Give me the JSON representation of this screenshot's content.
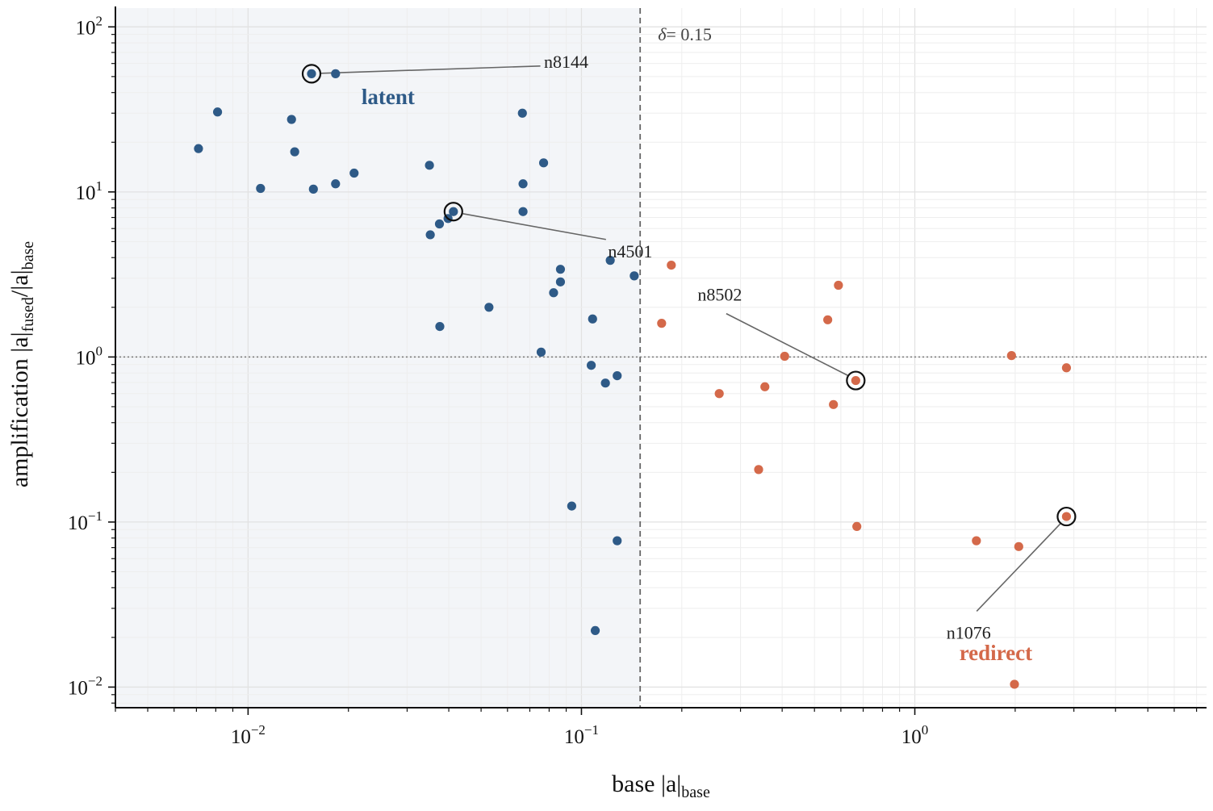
{
  "chart_data": {
    "type": "scatter",
    "x_scale": "log",
    "y_scale": "log",
    "xlim": [
      0.004,
      7.5
    ],
    "ylim": [
      0.0075,
      130
    ],
    "xlabel": {
      "main": "base |a|",
      "sub": "base"
    },
    "ylabel": {
      "main": "amplification |a|",
      "sub1": "fused",
      "mid": "/|a|",
      "sub2": "base"
    },
    "x_ticks": [
      {
        "value": 0.01,
        "base": "10",
        "exp": "−2"
      },
      {
        "value": 0.1,
        "base": "10",
        "exp": "−1"
      },
      {
        "value": 1,
        "base": "10",
        "exp": "0"
      }
    ],
    "y_ticks": [
      {
        "value": 0.01,
        "base": "10",
        "exp": "−2"
      },
      {
        "value": 0.1,
        "base": "10",
        "exp": "−1"
      },
      {
        "value": 1,
        "base": "10",
        "exp": "0"
      },
      {
        "value": 10,
        "base": "10",
        "exp": "1"
      },
      {
        "value": 100,
        "base": "10",
        "exp": "2"
      }
    ],
    "threshold": {
      "delta": 0.15,
      "label_symbol": "δ",
      "label_value": "= 0.15"
    },
    "reference_y": 1,
    "colors": {
      "latent": "#2e5a87",
      "redirect": "#d4694a",
      "latent_region": "#f3f5f8",
      "grid": "#e4e4e4"
    },
    "series": [
      {
        "name": "latent",
        "label": "latent",
        "points": [
          {
            "x": 0.0155,
            "y": 52
          },
          {
            "x": 0.0183,
            "y": 52
          },
          {
            "x": 0.0081,
            "y": 30.5
          },
          {
            "x": 0.0135,
            "y": 27.5
          },
          {
            "x": 0.0138,
            "y": 17.5
          },
          {
            "x": 0.0071,
            "y": 18.3
          },
          {
            "x": 0.0109,
            "y": 10.5
          },
          {
            "x": 0.0157,
            "y": 10.4
          },
          {
            "x": 0.0183,
            "y": 11.2
          },
          {
            "x": 0.0208,
            "y": 13.0
          },
          {
            "x": 0.035,
            "y": 14.5
          },
          {
            "x": 0.0665,
            "y": 30.0
          },
          {
            "x": 0.0668,
            "y": 11.2
          },
          {
            "x": 0.077,
            "y": 15.0
          },
          {
            "x": 0.0668,
            "y": 7.6
          },
          {
            "x": 0.0413,
            "y": 7.6
          },
          {
            "x": 0.0398,
            "y": 6.9
          },
          {
            "x": 0.0375,
            "y": 6.4
          },
          {
            "x": 0.0352,
            "y": 5.5
          },
          {
            "x": 0.0528,
            "y": 2.0
          },
          {
            "x": 0.0376,
            "y": 1.53
          },
          {
            "x": 0.0865,
            "y": 3.4
          },
          {
            "x": 0.0865,
            "y": 2.85
          },
          {
            "x": 0.0825,
            "y": 2.45
          },
          {
            "x": 0.122,
            "y": 3.85
          },
          {
            "x": 0.144,
            "y": 3.1
          },
          {
            "x": 0.108,
            "y": 1.7
          },
          {
            "x": 0.0757,
            "y": 1.07
          },
          {
            "x": 0.107,
            "y": 0.89
          },
          {
            "x": 0.118,
            "y": 0.695
          },
          {
            "x": 0.128,
            "y": 0.77
          },
          {
            "x": 0.0935,
            "y": 0.125
          },
          {
            "x": 0.128,
            "y": 0.077
          },
          {
            "x": 0.11,
            "y": 0.022
          }
        ]
      },
      {
        "name": "redirect",
        "label": "redirect",
        "points": [
          {
            "x": 0.186,
            "y": 3.6
          },
          {
            "x": 0.174,
            "y": 1.6
          },
          {
            "x": 0.59,
            "y": 2.72
          },
          {
            "x": 0.548,
            "y": 1.68
          },
          {
            "x": 0.407,
            "y": 1.01
          },
          {
            "x": 0.259,
            "y": 0.6
          },
          {
            "x": 0.355,
            "y": 0.66
          },
          {
            "x": 0.665,
            "y": 0.72
          },
          {
            "x": 0.57,
            "y": 0.515
          },
          {
            "x": 0.34,
            "y": 0.208
          },
          {
            "x": 0.67,
            "y": 0.094
          },
          {
            "x": 1.95,
            "y": 1.02
          },
          {
            "x": 2.85,
            "y": 0.86
          },
          {
            "x": 2.85,
            "y": 0.108
          },
          {
            "x": 1.53,
            "y": 0.077
          },
          {
            "x": 2.05,
            "y": 0.071
          },
          {
            "x": 1.99,
            "y": 0.0104
          }
        ]
      }
    ],
    "annotations": [
      {
        "label": "n8144",
        "x": 0.0155,
        "y": 52,
        "text_x": 0.09,
        "text_y": 62,
        "anchor": "middle"
      },
      {
        "label": "n4501",
        "x": 0.0413,
        "y": 7.6,
        "text_x": 0.14,
        "text_y": 4.4,
        "anchor": "middle"
      },
      {
        "label": "n8502",
        "x": 0.665,
        "y": 0.72,
        "text_x": 0.26,
        "text_y": 2.4,
        "anchor": "middle"
      },
      {
        "label": "n1076",
        "x": 2.85,
        "y": 0.108,
        "text_x": 1.45,
        "text_y": 0.0215,
        "anchor": "middle"
      }
    ],
    "region_labels": [
      {
        "series": "latent",
        "text": "latent",
        "x": 0.0263,
        "y": 34
      },
      {
        "series": "redirect",
        "text": "redirect",
        "x": 1.75,
        "y": 0.0146
      }
    ]
  }
}
